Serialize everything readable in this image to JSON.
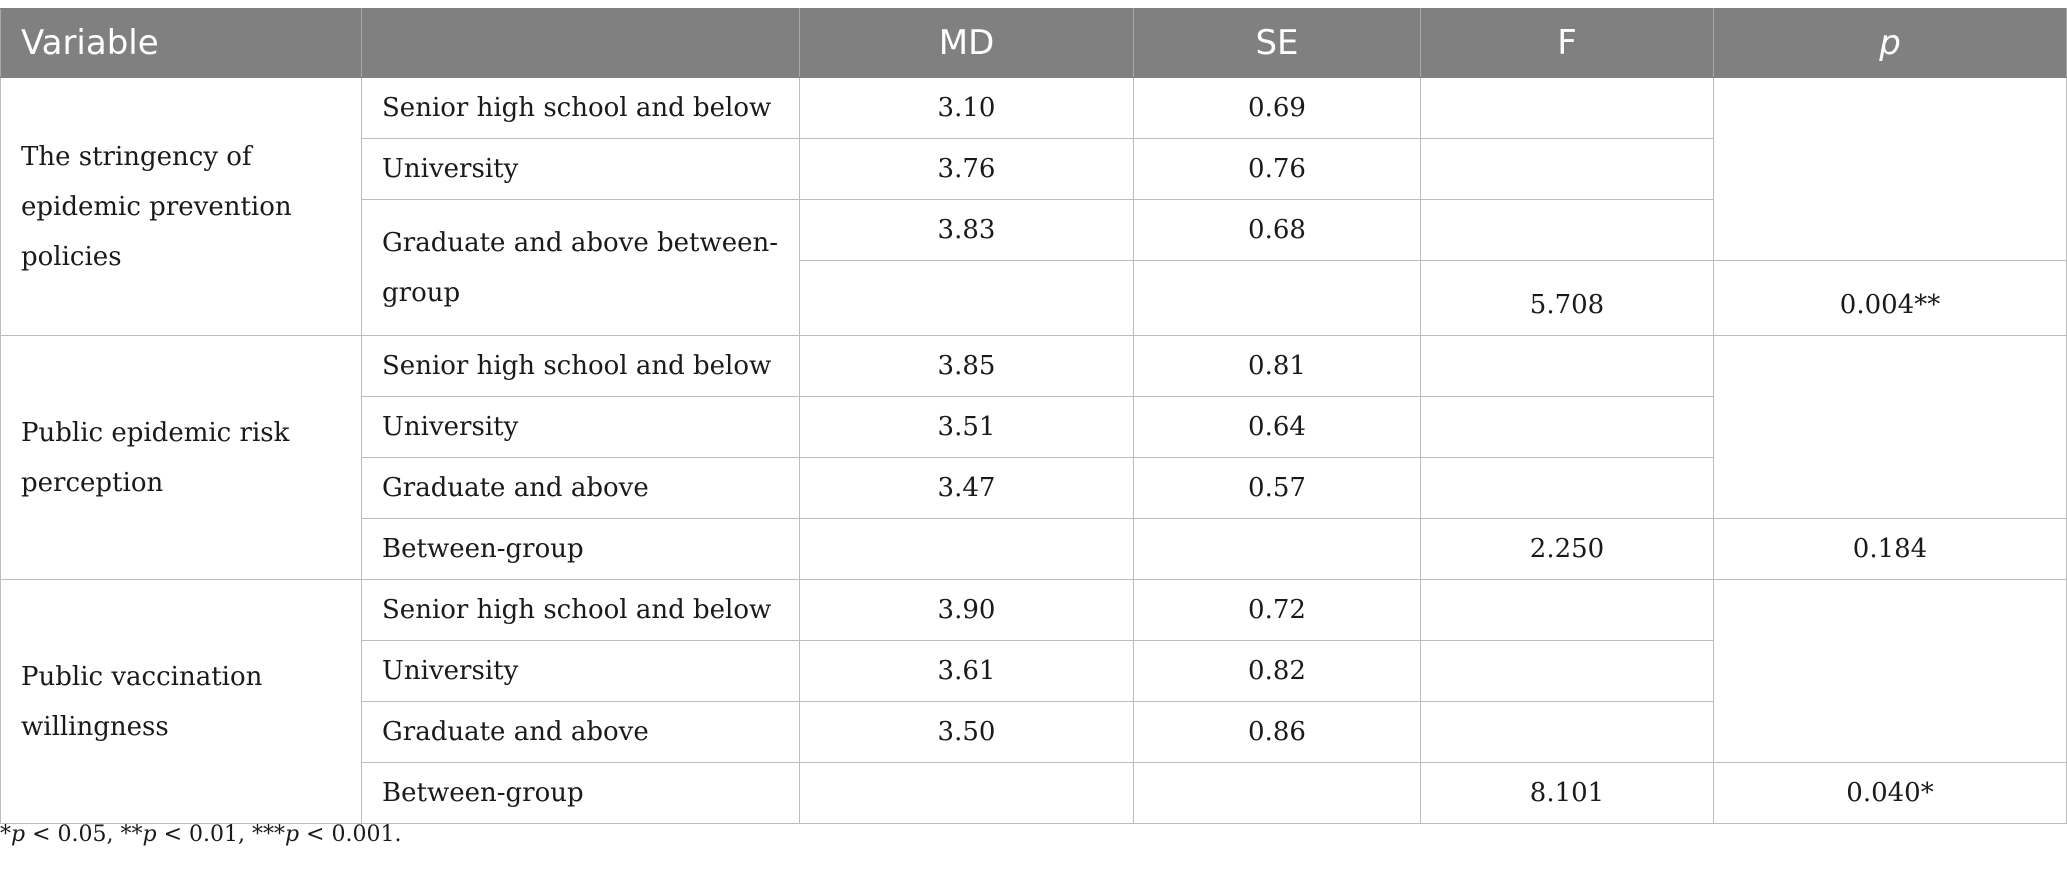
{
  "header": {
    "variable": "Variable",
    "group": "",
    "md": "MD",
    "se": "SE",
    "f": "F",
    "p": "p"
  },
  "sections": [
    {
      "variable": "The stringency of epidemic prevention policies",
      "rows": [
        {
          "group": "Senior high school and below",
          "md": "3.10",
          "se": "0.69"
        },
        {
          "group": "University",
          "md": "3.76",
          "se": "0.76"
        },
        {
          "group": "Graduate and above between-group",
          "md": "3.83",
          "se": "0.68"
        }
      ],
      "between": {
        "group": "",
        "f": "5.708",
        "p": "0.004**"
      }
    },
    {
      "variable": "Public epidemic risk perception",
      "rows": [
        {
          "group": "Senior high school and below",
          "md": "3.85",
          "se": "0.81"
        },
        {
          "group": "University",
          "md": "3.51",
          "se": "0.64"
        },
        {
          "group": "Graduate and above",
          "md": "3.47",
          "se": "0.57"
        }
      ],
      "between": {
        "group": "Between-group",
        "f": "2.250",
        "p": "0.184"
      }
    },
    {
      "variable": "Public vaccination willingness",
      "rows": [
        {
          "group": "Senior high school and below",
          "md": "3.90",
          "se": "0.72"
        },
        {
          "group": "University",
          "md": "3.61",
          "se": "0.82"
        },
        {
          "group": "Graduate and above",
          "md": "3.50",
          "se": "0.86"
        }
      ],
      "between": {
        "group": "Between-group",
        "f": "8.101",
        "p": "0.040*"
      }
    }
  ],
  "footnote": {
    "s1": "*",
    "p1": "p",
    "t1": " < 0.05, **",
    "p2": "p",
    "t2": " < 0.01, ***",
    "p3": "p",
    "t3": " < 0.001."
  }
}
